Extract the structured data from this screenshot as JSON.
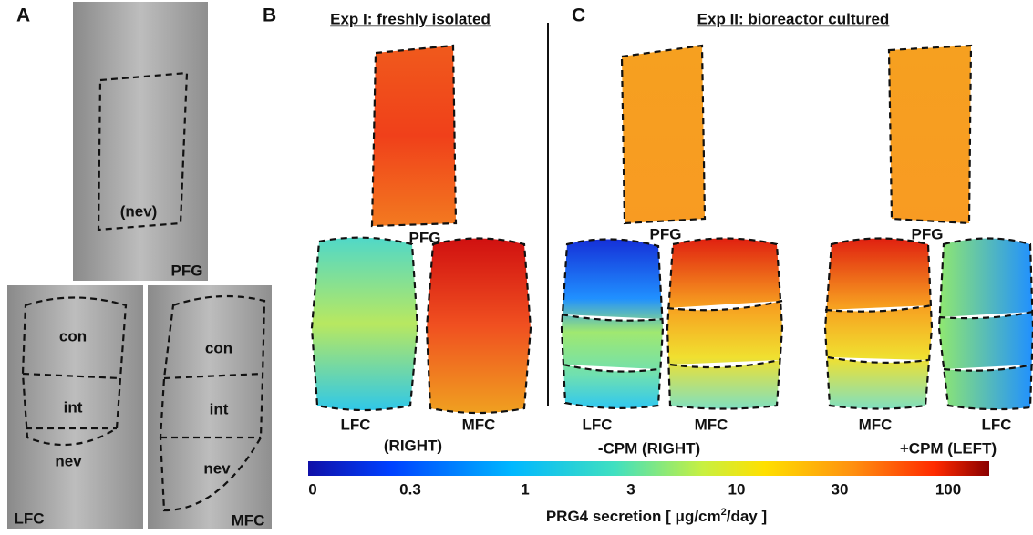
{
  "panel_a": {
    "letter": "A",
    "pfg_image": {
      "region": "(nev)",
      "label": "PFG"
    },
    "lfc_image": {
      "regions": [
        "con",
        "int",
        "nev"
      ],
      "label": "LFC"
    },
    "mfc_image": {
      "regions": [
        "con",
        "int",
        "nev"
      ],
      "label": "MFC"
    }
  },
  "panel_b": {
    "letter": "B",
    "title": "Exp I: freshly isolated",
    "maps": [
      "PFG",
      "LFC",
      "MFC"
    ],
    "condition": "(RIGHT)"
  },
  "panel_c": {
    "letter": "C",
    "title": "Exp II: bioreactor cultured",
    "left_maps": [
      "PFG",
      "LFC",
      "MFC"
    ],
    "left_condition": "-CPM (RIGHT)",
    "right_maps": [
      "PFG",
      "MFC",
      "LFC"
    ],
    "right_condition": "+CPM (LEFT)"
  },
  "colorbar": {
    "ticks": [
      0,
      0.3,
      1,
      3,
      10,
      30,
      100
    ],
    "label_start": "PRG4 secretion [ μg/cm",
    "label_sup": "2",
    "label_end": "/day ]"
  }
}
